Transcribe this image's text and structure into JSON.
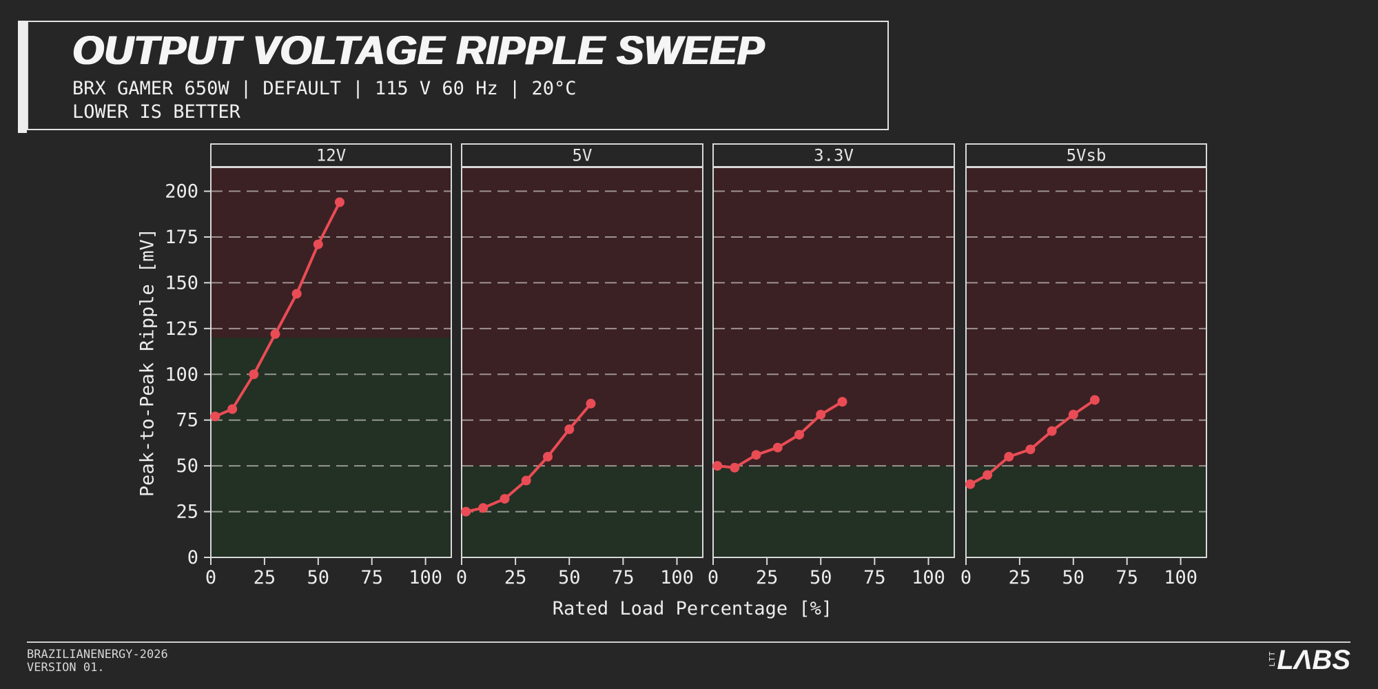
{
  "header": {
    "title": "OUTPUT VOLTAGE RIPPLE SWEEP",
    "subtitle": "BRX GAMER 650W | DEFAULT | 115 V 60 Hz | 20°C",
    "note": "LOWER IS BETTER"
  },
  "chart_data": {
    "type": "line",
    "title": "Output Voltage Ripple Sweep",
    "xlabel": "Rated Load Percentage [%]",
    "ylabel": "Peak-to-Peak Ripple [mV]",
    "x": [
      2,
      10,
      20,
      30,
      40,
      50,
      60
    ],
    "facets": [
      {
        "label": "12V",
        "limit_mV": 120,
        "values": [
          77,
          81,
          100,
          122,
          144,
          171,
          194
        ]
      },
      {
        "label": "5V",
        "limit_mV": 50,
        "values": [
          25,
          27,
          32,
          42,
          55,
          70,
          84
        ]
      },
      {
        "label": "3.3V",
        "limit_mV": 50,
        "values": [
          50,
          49,
          56,
          60,
          67,
          78,
          85
        ]
      },
      {
        "label": "5Vsb",
        "limit_mV": 50,
        "values": [
          40,
          45,
          55,
          59,
          69,
          78,
          86
        ]
      }
    ],
    "x_ticks": [
      0,
      25,
      50,
      75,
      100
    ],
    "y_ticks": [
      0,
      25,
      50,
      75,
      100,
      125,
      150,
      175,
      200
    ],
    "xlim": [
      0,
      112
    ],
    "ylim": [
      0,
      213
    ],
    "grid": "horizontal-dashed",
    "legend": "none",
    "colors": {
      "series": "#e94c55",
      "zone_pass": "#233024",
      "zone_fail": "#3b2123",
      "gridline": "rgba(244,242,240,0.55)",
      "panel_border": "#d9d9d9",
      "tick_text": "#ececec",
      "background": "#262626"
    }
  },
  "footer": {
    "line1": "BRAZILIANENERGY-2026",
    "line2": "VERSION 01.",
    "logo_small": "LTT",
    "logo_large": "LABS"
  }
}
